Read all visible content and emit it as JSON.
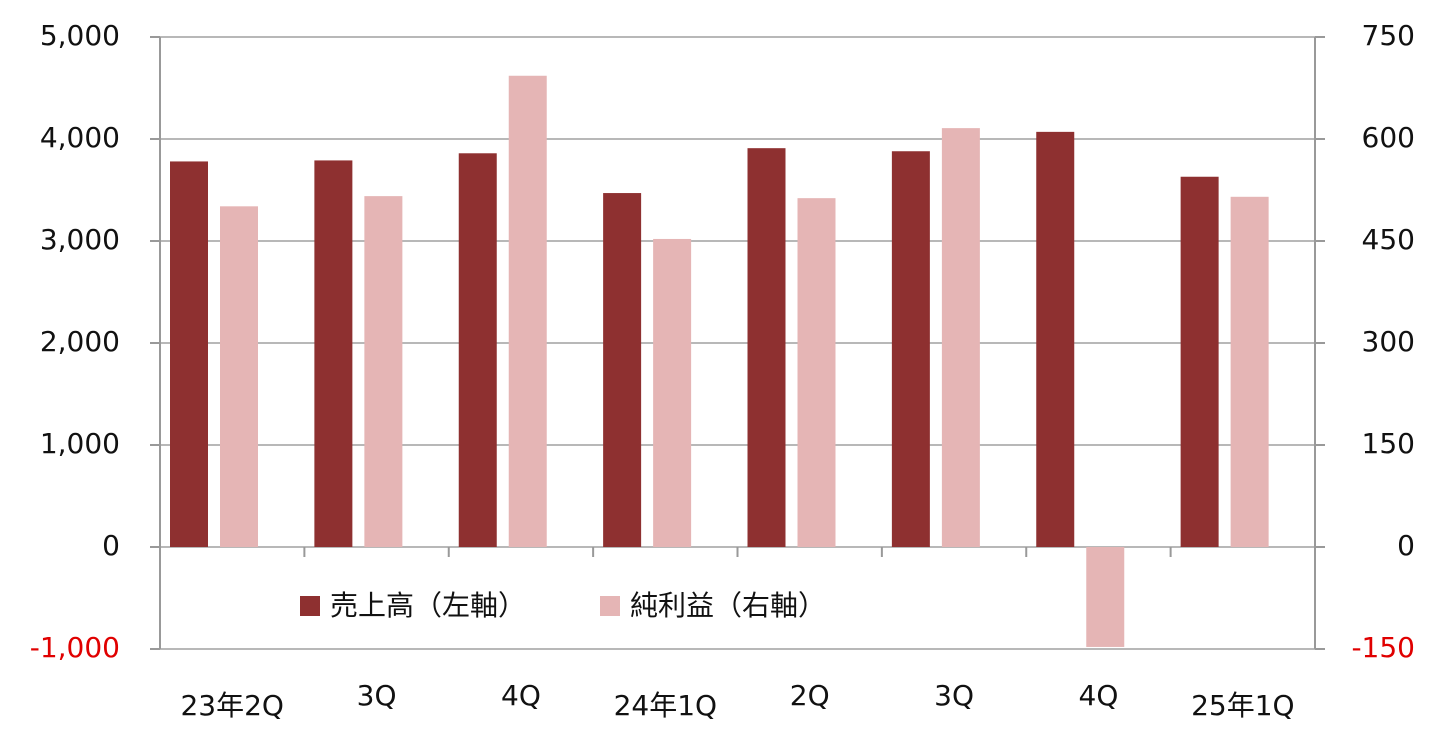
{
  "chart_data": {
    "type": "bar",
    "categories": [
      "23年2Q",
      "3Q",
      "4Q",
      "24年1Q",
      "2Q",
      "3Q",
      "4Q",
      "25年1Q"
    ],
    "series": [
      {
        "name": "売上高（左軸）",
        "color": "#8e3030",
        "values": [
          3780,
          3790,
          3860,
          3470,
          3910,
          3880,
          4070,
          3630
        ]
      },
      {
        "name": "純利益（右軸）",
        "color": "#e5b5b5",
        "axis": "y2",
        "values": [
          501,
          516,
          693,
          453,
          513,
          616,
          -147,
          515
        ]
      }
    ],
    "ylim": [
      -1000,
      5000
    ],
    "yticks": [
      {
        "value": -1000,
        "label": "-1,000"
      },
      0,
      {
        "value": 1000,
        "label": "1,000"
      },
      {
        "value": 2000,
        "label": "2,000"
      },
      {
        "value": 3000,
        "label": "3,000"
      },
      {
        "value": 4000,
        "label": "4,000"
      },
      {
        "value": 5000,
        "label": "5,000"
      }
    ],
    "y2lim": [
      -150,
      750
    ],
    "y2ticks": [
      -150,
      0,
      150,
      300,
      450,
      600,
      750
    ],
    "grid": true
  }
}
